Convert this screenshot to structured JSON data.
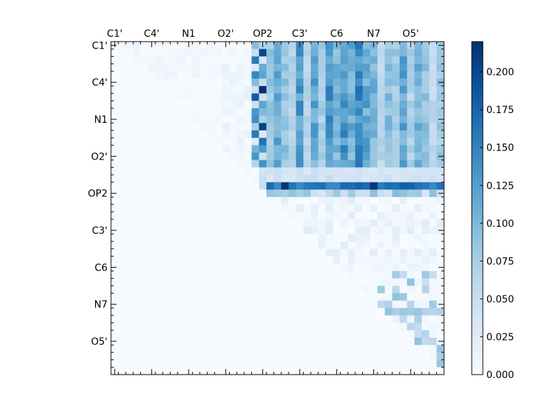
{
  "chart_data": {
    "type": "heatmap",
    "title": "",
    "xlabel": "",
    "ylabel": "",
    "x_tick_labels": [
      "C1'",
      "C4'",
      "N1",
      "O2'",
      "OP2",
      "C3'",
      "C6",
      "N7",
      "O5'"
    ],
    "y_tick_labels": [
      "C1'",
      "C4'",
      "N1",
      "O2'",
      "OP2",
      "C3'",
      "C6",
      "N7",
      "O5'"
    ],
    "grid_size": 45,
    "major_tick_step": 5,
    "colormap": "Blues",
    "colorbar": {
      "min": 0.0,
      "max": 0.22,
      "ticks": [
        0.0,
        0.025,
        0.05,
        0.075,
        0.1,
        0.125,
        0.15,
        0.175,
        0.2
      ],
      "tick_labels": [
        "0.000",
        "0.025",
        "0.050",
        "0.075",
        "0.100",
        "0.125",
        "0.150",
        "0.175",
        "0.200"
      ],
      "placement": "right"
    },
    "approx_regions": [
      {
        "name": "upper-right block",
        "rows": [
          0,
          16
        ],
        "cols": [
          21,
          44
        ],
        "typical_value": 0.11
      },
      {
        "name": "OP2 row",
        "rows": [
          19,
          19
        ],
        "cols": [
          22,
          44
        ],
        "typical_value": 0.165
      },
      {
        "name": "OP2 column strip",
        "rows": [
          0,
          16
        ],
        "cols": [
          19,
          20
        ],
        "typical_value": 0.15
      },
      {
        "name": "lower triangle",
        "rows": [
          20,
          44
        ],
        "cols": [
          0,
          44
        ],
        "typical_value": 0.0
      }
    ],
    "max_value": 0.215
  }
}
